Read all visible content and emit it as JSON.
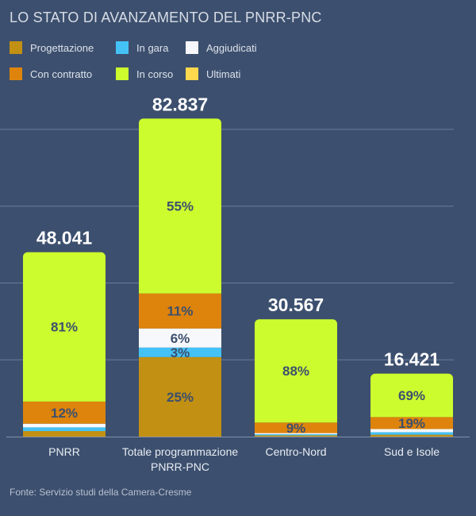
{
  "chart_data": {
    "type": "bar",
    "stacked": true,
    "title": "LO STATO DI AVANZAMENTO DEL PNRR-PNC",
    "source": "Fonte: Servizio studi della Camera-Cresme",
    "ylim": [
      0,
      80000
    ],
    "grid": true,
    "gridlines": [
      20000,
      40000,
      60000,
      80000
    ],
    "legend_position": "top-left",
    "series": [
      {
        "name": "Progettazione",
        "color": "#c29012"
      },
      {
        "name": "In gara",
        "color": "#45c2f5"
      },
      {
        "name": "Aggiudicati",
        "color": "#f6f8fb"
      },
      {
        "name": "Con contratto",
        "color": "#de840c"
      },
      {
        "name": "In corso",
        "color": "#cdfc2e"
      },
      {
        "name": "Ultimati",
        "color": "#ffd84d"
      }
    ],
    "categories": [
      {
        "label": [
          "PNRR"
        ],
        "total": 48041,
        "total_label": "48.041",
        "shares": [
          3,
          2,
          2,
          12,
          81,
          0
        ],
        "labels": [
          "",
          "",
          "",
          "12%",
          "81%",
          ""
        ]
      },
      {
        "label": [
          "Totale programmazione",
          "PNRR-PNC"
        ],
        "total": 82837,
        "total_label": "82.837",
        "shares": [
          25,
          3,
          6,
          11,
          55,
          0
        ],
        "labels": [
          "25%",
          "3%",
          "6%",
          "11%",
          "55%",
          ""
        ]
      },
      {
        "label": [
          "Centro-Nord"
        ],
        "total": 30567,
        "total_label": "30.567",
        "shares": [
          1,
          1,
          1,
          9,
          88,
          0
        ],
        "labels": [
          "",
          "",
          "",
          "9%",
          "88%",
          ""
        ]
      },
      {
        "label": [
          "Sud e Isole"
        ],
        "total": 16421,
        "total_label": "16.421",
        "shares": [
          3,
          4,
          5,
          19,
          69,
          0
        ],
        "labels": [
          "",
          "",
          "",
          "19%",
          "69%",
          ""
        ]
      }
    ]
  }
}
